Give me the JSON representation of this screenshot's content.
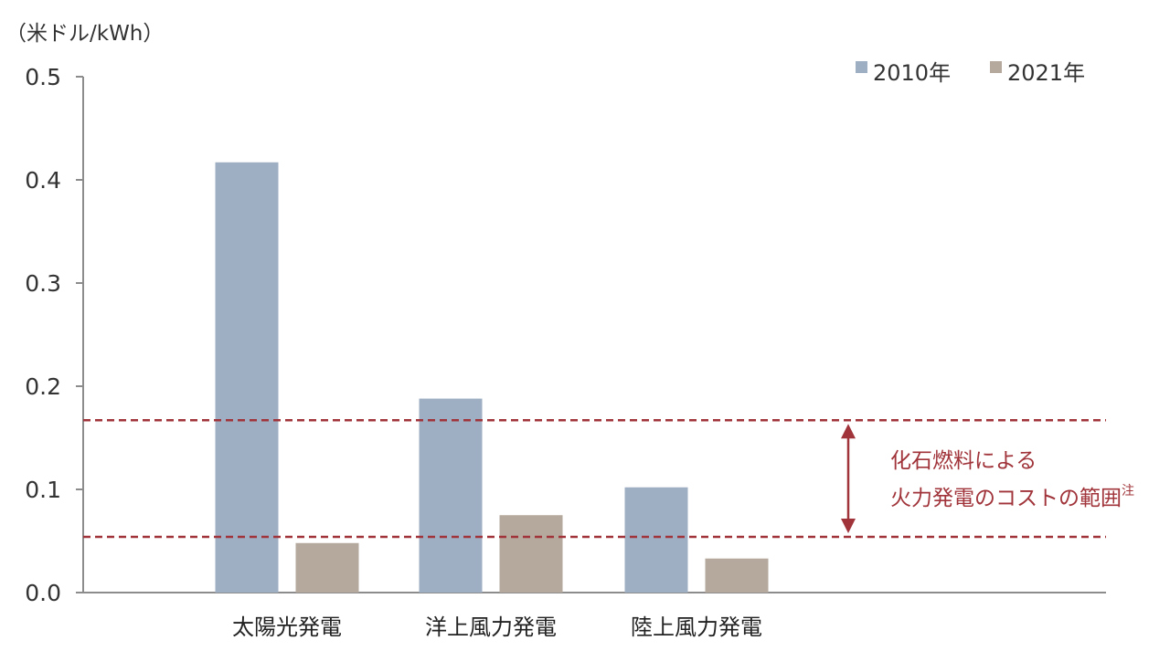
{
  "chart_data": {
    "type": "bar",
    "unit_label": "（米ドル/kWh）",
    "categories": [
      "太陽光発電",
      "洋上風力発電",
      "陸上風力発電"
    ],
    "series": [
      {
        "name": "2010年",
        "values": [
          0.417,
          0.188,
          0.102
        ],
        "color": "#9eafc4"
      },
      {
        "name": "2021年",
        "values": [
          0.048,
          0.075,
          0.033
        ],
        "color": "#b5a89c"
      }
    ],
    "ylim": [
      0,
      0.5
    ],
    "yticks": [
      "0.0",
      "0.1",
      "0.2",
      "0.3",
      "0.4",
      "0.5"
    ],
    "legend_position": "top-right",
    "grid": false,
    "reference_range": {
      "low": 0.054,
      "high": 0.167,
      "color": "#a0343a",
      "label_line1": "化石燃料による",
      "label_line2": "火力発電のコストの範囲",
      "label_sup": "注"
    },
    "axis_color": "#8c8c8c"
  }
}
